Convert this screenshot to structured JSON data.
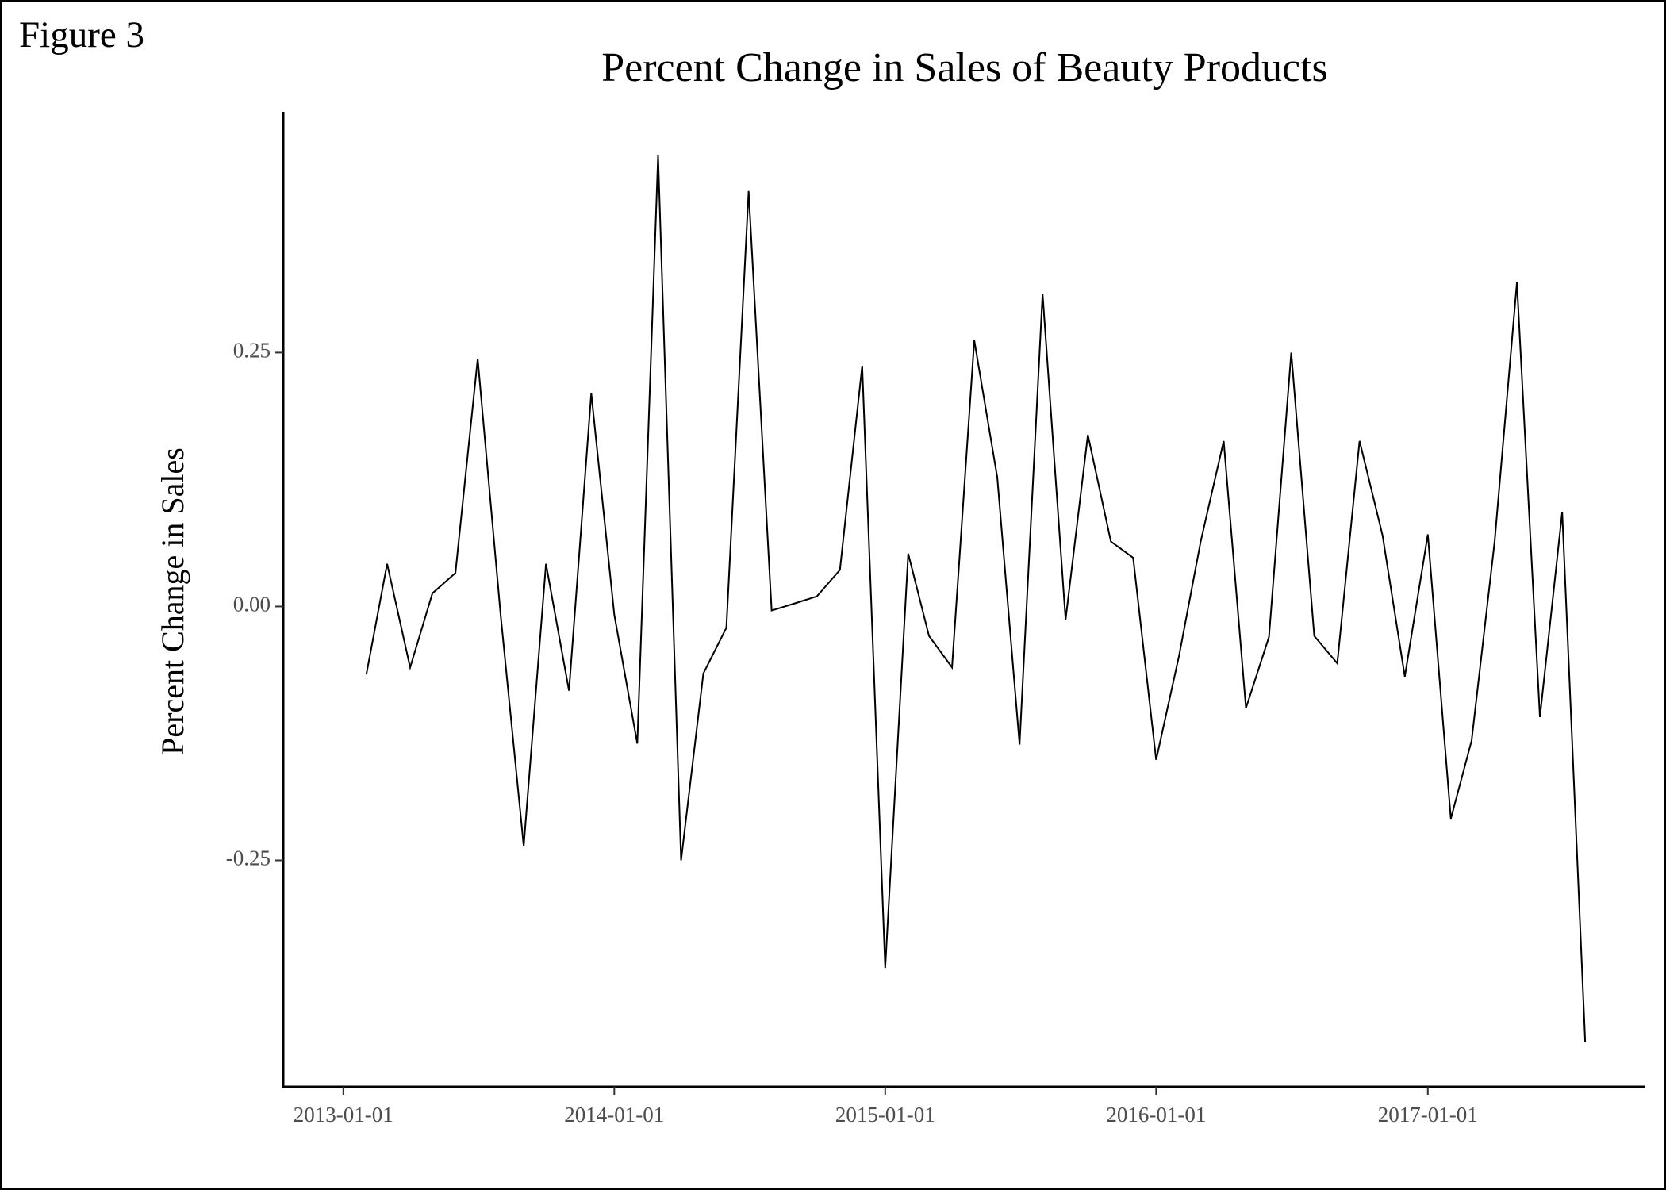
{
  "figure_label": "Figure 3",
  "chart_data": {
    "type": "line",
    "title": "Percent Change in Sales of Beauty Products",
    "ylabel": "Percent Change in Sales",
    "color": "#000000",
    "x": [
      "2013-02-01",
      "2013-03-01",
      "2013-04-01",
      "2013-05-01",
      "2013-06-01",
      "2013-07-01",
      "2013-08-01",
      "2013-09-01",
      "2013-10-01",
      "2013-11-01",
      "2013-12-01",
      "2014-01-01",
      "2014-02-01",
      "2014-03-01",
      "2014-04-01",
      "2014-05-01",
      "2014-06-01",
      "2014-07-01",
      "2014-08-01",
      "2014-09-01",
      "2014-10-01",
      "2014-11-01",
      "2014-12-01",
      "2015-01-01",
      "2015-02-01",
      "2015-03-01",
      "2015-04-01",
      "2015-05-01",
      "2015-06-01",
      "2015-07-01",
      "2015-08-01",
      "2015-09-01",
      "2015-10-01",
      "2015-11-01",
      "2015-12-01",
      "2016-01-01",
      "2016-02-01",
      "2016-03-01",
      "2016-04-01",
      "2016-05-01",
      "2016-06-01",
      "2016-07-01",
      "2016-08-01",
      "2016-09-01",
      "2016-10-01",
      "2016-11-01",
      "2016-12-01",
      "2017-01-01",
      "2017-02-01",
      "2017-03-01",
      "2017-04-01",
      "2017-05-01",
      "2017-06-01",
      "2017-07-01",
      "2017-08-01"
    ],
    "values": [
      -0.067,
      0.042,
      -0.06,
      0.013,
      0.033,
      0.244,
      -0.009,
      -0.236,
      0.042,
      -0.083,
      0.21,
      -0.008,
      -0.135,
      0.444,
      -0.25,
      -0.066,
      -0.021,
      0.409,
      -0.004,
      0.003,
      0.01,
      0.036,
      0.237,
      -0.356,
      0.052,
      -0.029,
      -0.06,
      0.262,
      0.127,
      -0.136,
      0.308,
      -0.013,
      0.169,
      0.064,
      0.048,
      -0.151,
      -0.048,
      0.064,
      0.163,
      -0.1,
      -0.03,
      0.25,
      -0.029,
      -0.056,
      0.163,
      0.07,
      -0.069,
      0.071,
      -0.209,
      -0.132,
      0.064,
      0.319,
      -0.109,
      0.093,
      -0.429
    ],
    "xlim": [
      "2012-10-12",
      "2017-10-20"
    ],
    "xticks": [
      "2013-01-01",
      "2014-01-01",
      "2015-01-01",
      "2016-01-01",
      "2017-01-01"
    ],
    "ylim": [
      -0.473,
      0.487
    ],
    "yticks": [
      -0.25,
      {
        "value": 0,
        "label": "0.00"
      },
      0.25
    ],
    "grid": false
  }
}
